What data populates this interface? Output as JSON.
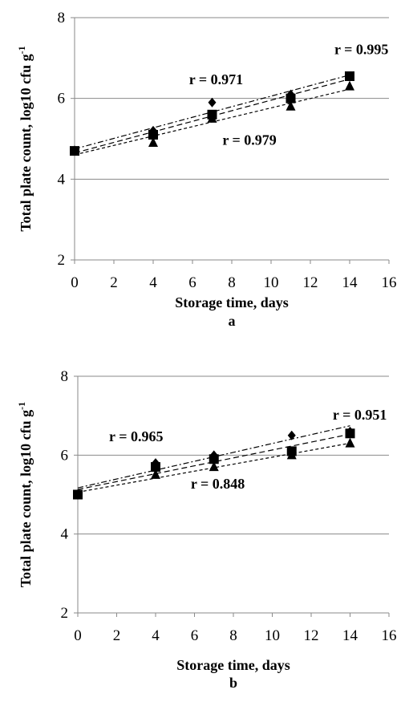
{
  "chart_data": [
    {
      "type": "scatter",
      "panel_label": "a",
      "xlabel": "Storage time, days",
      "ylabel": "Total plate count, log10 cfu g",
      "ylabel_sup": "-1",
      "xlim": [
        0,
        16
      ],
      "ylim": [
        2,
        8
      ],
      "xticks": [
        0,
        2,
        4,
        6,
        8,
        10,
        12,
        14,
        16
      ],
      "yticks": [
        2,
        4,
        6,
        8
      ],
      "grid": "horizontal",
      "series": [
        {
          "marker": "diamond",
          "x": [
            0,
            4,
            7,
            11,
            14
          ],
          "y": [
            4.7,
            5.2,
            5.9,
            6.1,
            6.55
          ]
        },
        {
          "marker": "square",
          "x": [
            0,
            4,
            7,
            11,
            14
          ],
          "y": [
            4.7,
            5.1,
            5.6,
            6.0,
            6.55
          ]
        },
        {
          "marker": "triangle",
          "x": [
            0,
            4,
            7,
            11,
            14
          ],
          "y": [
            4.7,
            4.9,
            5.5,
            5.8,
            6.3
          ]
        }
      ],
      "annotations": [
        {
          "text": "r = 0.995",
          "x": 14.6,
          "y": 7.1
        },
        {
          "text": "r = 0.971",
          "x": 7.2,
          "y": 6.35
        },
        {
          "text": "r = 0.979",
          "x": 8.9,
          "y": 4.85
        }
      ]
    },
    {
      "type": "scatter",
      "panel_label": "b",
      "xlabel": "Storage time, days",
      "ylabel": "Total plate count, log10 cfu g",
      "ylabel_sup": "-1",
      "xlim": [
        0,
        16
      ],
      "ylim": [
        2,
        8
      ],
      "xticks": [
        0,
        2,
        4,
        6,
        8,
        10,
        12,
        14,
        16
      ],
      "yticks": [
        2,
        4,
        6,
        8
      ],
      "grid": "horizontal",
      "series": [
        {
          "marker": "diamond",
          "x": [
            0,
            4,
            7,
            11,
            14
          ],
          "y": [
            5.0,
            5.8,
            6.0,
            6.5,
            6.6
          ]
        },
        {
          "marker": "square",
          "x": [
            0,
            4,
            7,
            11,
            14
          ],
          "y": [
            5.0,
            5.7,
            5.9,
            6.1,
            6.55
          ]
        },
        {
          "marker": "triangle",
          "x": [
            0,
            4,
            7,
            11,
            14
          ],
          "y": [
            5.0,
            5.5,
            5.7,
            6.0,
            6.3
          ]
        }
      ],
      "annotations": [
        {
          "text": "r = 0.965",
          "x": 3.0,
          "y": 6.35
        },
        {
          "text": "r = 0.951",
          "x": 14.5,
          "y": 6.9
        },
        {
          "text": "r = 0.848",
          "x": 7.2,
          "y": 5.15
        }
      ]
    }
  ]
}
